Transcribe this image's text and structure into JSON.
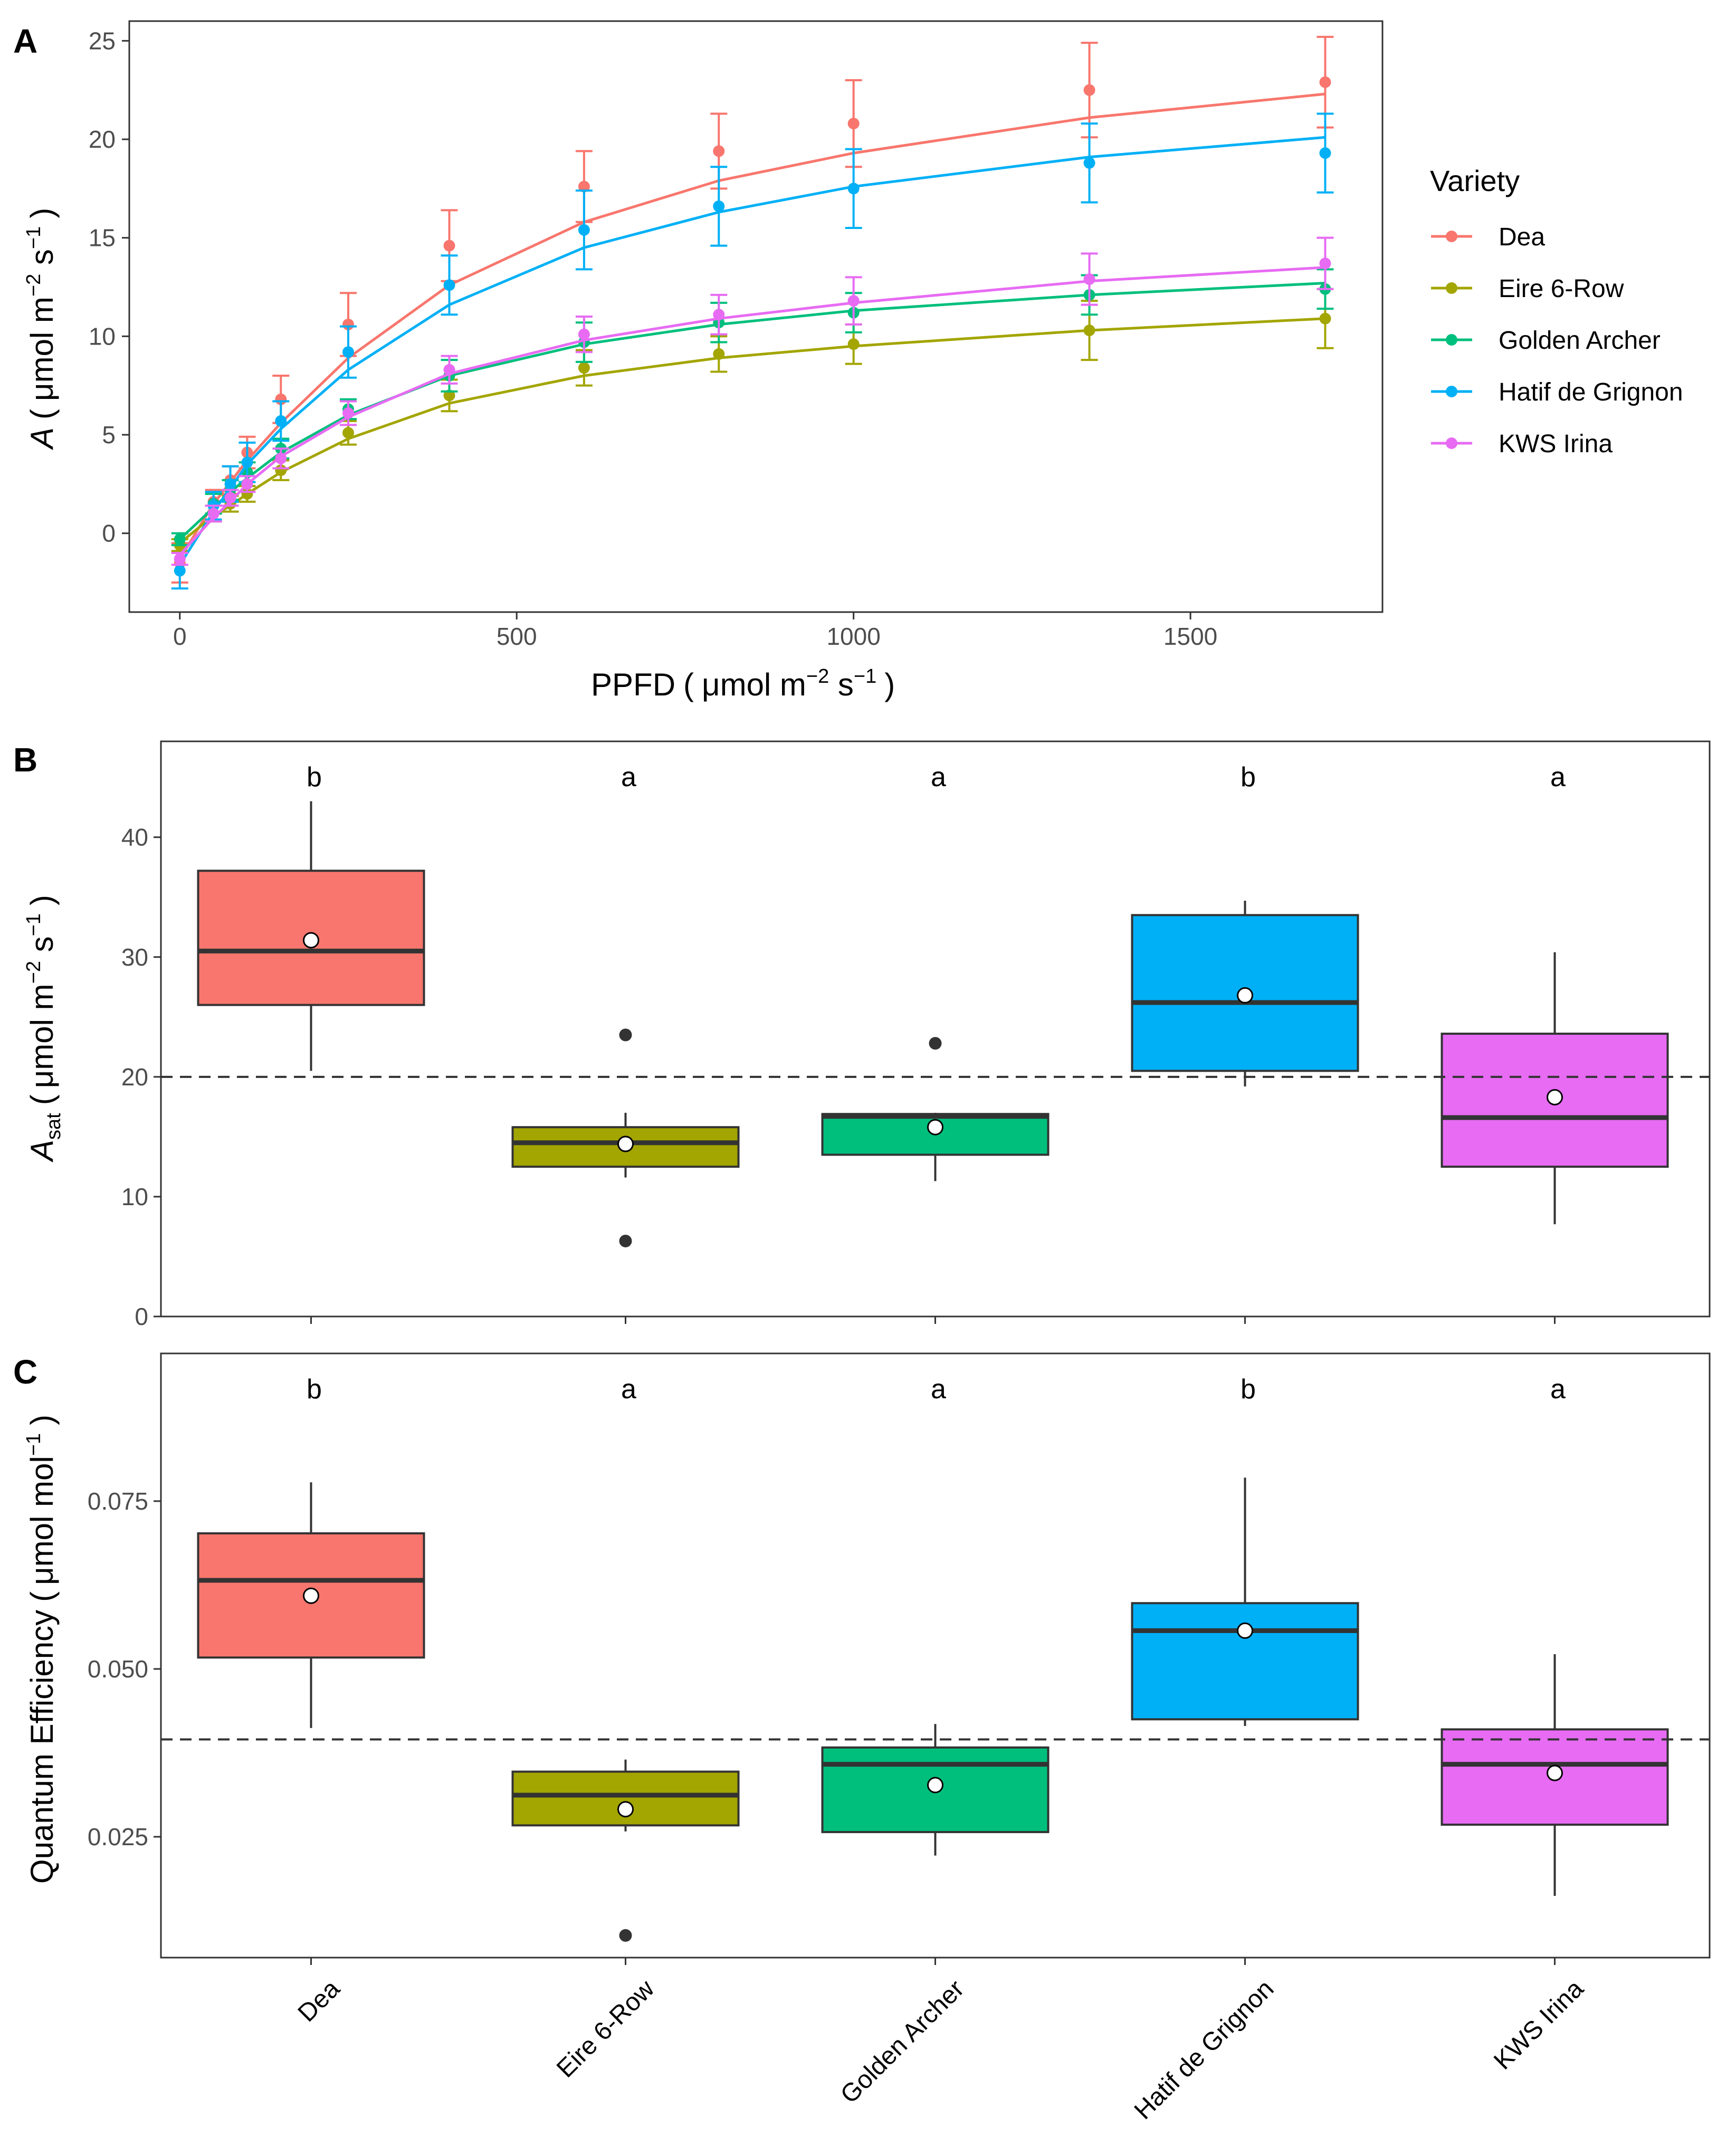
{
  "colors": {
    "Dea": "#F8766D",
    "Eire 6-Row": "#A3A500",
    "Golden Archer": "#00BF7D",
    "Hatif de Grignon": "#00B0F6",
    "KWS Irina": "#E76BF3"
  },
  "legend": {
    "title": "Variety",
    "items": [
      "Dea",
      "Eire 6-Row",
      "Golden Archer",
      "Hatif de Grignon",
      "KWS Irina"
    ]
  },
  "panelA": {
    "letter": "A",
    "ylabel_italic": "A",
    "ylabel_unit": "μmol m",
    "ylabel_exp1": "−2",
    "ylabel_s": " s",
    "ylabel_exp2": "−1",
    "xlabel_main": "PPFD",
    "xlabel_unit": "μmol m",
    "xlabel_exp1": "−2",
    "xlabel_s": " s",
    "xlabel_exp2": "−1",
    "xticks": [
      "0",
      "500",
      "1000",
      "1500"
    ],
    "yticks": [
      "0",
      "5",
      "10",
      "15",
      "20",
      "25"
    ]
  },
  "panelB": {
    "letter": "B",
    "ylabel_main": "A",
    "ylabel_sub": "sat",
    "ylabel_unit": "μmol m",
    "ylabel_exp1": "−2",
    "ylabel_s": " s",
    "ylabel_exp2": "−1",
    "yticks": [
      "0",
      "10",
      "20",
      "30",
      "40"
    ],
    "letters": [
      "b",
      "a",
      "a",
      "b",
      "a"
    ]
  },
  "panelC": {
    "letter": "C",
    "ylabel_main": "Quantum Efficiency",
    "ylabel_unit": "μmol mol",
    "ylabel_exp": "−1",
    "yticks": [
      "0.025",
      "0.050",
      "0.075"
    ],
    "letters": [
      "b",
      "a",
      "a",
      "b",
      "a"
    ]
  },
  "categories": [
    "Dea",
    "Eire 6-Row",
    "Golden Archer",
    "Hatif de Grignon",
    "KWS Irina"
  ],
  "chart_data": [
    {
      "type": "line",
      "title": "A",
      "xlabel": "PPFD (μmol m−2 s−1)",
      "ylabel": "A (μmol m−2 s−1)",
      "xlim": [
        -75,
        1785
      ],
      "ylim": [
        -4,
        26
      ],
      "x": [
        0,
        50,
        75,
        100,
        150,
        250,
        400,
        600,
        800,
        1000,
        1350,
        1700
      ],
      "series": [
        {
          "name": "Dea",
          "points": [
            -1.5,
            1.6,
            2.7,
            4.1,
            6.8,
            10.6,
            14.6,
            17.6,
            19.4,
            20.8,
            22.5,
            22.9
          ],
          "err": [
            1.0,
            0.6,
            0.7,
            0.8,
            1.2,
            1.6,
            1.8,
            1.8,
            1.9,
            2.2,
            2.4,
            2.3
          ],
          "fit": [
            -1.3,
            1.5,
            2.6,
            3.7,
            5.6,
            8.9,
            12.6,
            15.8,
            17.9,
            19.3,
            21.1,
            22.3
          ]
        },
        {
          "name": "Eire 6-Row",
          "points": [
            -0.6,
            1.0,
            1.5,
            2.0,
            3.2,
            5.1,
            7.0,
            8.4,
            9.1,
            9.6,
            10.3,
            10.9
          ],
          "err": [
            0.3,
            0.4,
            0.4,
            0.4,
            0.5,
            0.6,
            0.8,
            0.9,
            0.9,
            1.0,
            1.5,
            1.5
          ],
          "fit": [
            -0.5,
            0.9,
            1.4,
            2.0,
            3.1,
            4.8,
            6.6,
            8.0,
            8.9,
            9.5,
            10.3,
            10.9
          ]
        },
        {
          "name": "Golden Archer",
          "points": [
            -0.3,
            1.5,
            2.2,
            3.1,
            4.3,
            6.3,
            8.0,
            9.7,
            10.7,
            11.2,
            12.1,
            12.4
          ],
          "err": [
            0.3,
            0.5,
            0.5,
            0.5,
            0.5,
            0.5,
            0.8,
            1.0,
            1.0,
            1.0,
            1.0,
            1.0
          ],
          "fit": [
            -0.3,
            1.3,
            2.1,
            2.8,
            4.1,
            6.0,
            8.0,
            9.6,
            10.6,
            11.3,
            12.1,
            12.7
          ]
        },
        {
          "name": "Hatif de Grignon",
          "points": [
            -1.9,
            1.4,
            2.5,
            3.6,
            5.7,
            9.2,
            12.6,
            15.4,
            16.6,
            17.5,
            18.8,
            19.3
          ],
          "err": [
            0.9,
            0.7,
            0.9,
            1.0,
            1.0,
            1.3,
            1.5,
            2.0,
            2.0,
            2.0,
            2.0,
            2.0
          ],
          "fit": [
            -1.6,
            1.1,
            2.3,
            3.5,
            5.3,
            8.3,
            11.6,
            14.5,
            16.3,
            17.6,
            19.1,
            20.1
          ]
        },
        {
          "name": "KWS Irina",
          "points": [
            -1.3,
            1.0,
            1.8,
            2.5,
            3.8,
            6.1,
            8.3,
            10.1,
            11.1,
            11.8,
            12.9,
            13.7
          ],
          "err": [
            0.3,
            0.4,
            0.4,
            0.4,
            0.5,
            0.6,
            0.7,
            0.9,
            1.0,
            1.2,
            1.3,
            1.3
          ],
          "fit": [
            -1.1,
            0.8,
            1.6,
            2.5,
            3.9,
            5.9,
            8.1,
            9.8,
            10.9,
            11.7,
            12.8,
            13.5
          ]
        }
      ]
    },
    {
      "type": "box",
      "title": "B",
      "ylabel": "Asat (μmol m−2 s−1)",
      "ylim": [
        0,
        48
      ],
      "reference_line": 20,
      "categories": [
        "Dea",
        "Eire 6-Row",
        "Golden Archer",
        "Hatif de Grignon",
        "KWS Irina"
      ],
      "boxes": [
        {
          "min": 20.5,
          "q1": 26.0,
          "median": 30.5,
          "q3": 37.2,
          "max": 43.0,
          "mean": 31.4,
          "outliers": []
        },
        {
          "min": 11.6,
          "q1": 12.5,
          "median": 14.5,
          "q3": 15.8,
          "max": 17.0,
          "mean": 14.4,
          "outliers": [
            23.5,
            6.3
          ]
        },
        {
          "min": 11.3,
          "q1": 13.5,
          "median": 16.7,
          "q3": 16.9,
          "max": 17.0,
          "mean": 15.8,
          "outliers": [
            22.8
          ]
        },
        {
          "min": 19.2,
          "q1": 20.5,
          "median": 26.2,
          "q3": 33.5,
          "max": 34.7,
          "mean": 26.8,
          "outliers": []
        },
        {
          "min": 7.7,
          "q1": 12.5,
          "median": 16.6,
          "q3": 23.6,
          "max": 30.4,
          "mean": 18.3,
          "outliers": []
        }
      ],
      "annotations": [
        "b",
        "a",
        "a",
        "b",
        "a"
      ]
    },
    {
      "type": "box",
      "title": "C",
      "ylabel": "Quantum Efficiency (μmol mol−1)",
      "ylim": [
        0.007,
        0.097
      ],
      "reference_line": 0.0395,
      "categories": [
        "Dea",
        "Eire 6-Row",
        "Golden Archer",
        "Hatif de Grignon",
        "KWS Irina"
      ],
      "boxes": [
        {
          "min": 0.0412,
          "q1": 0.0517,
          "median": 0.0632,
          "q3": 0.0702,
          "max": 0.0778,
          "mean": 0.0609,
          "outliers": []
        },
        {
          "min": 0.0258,
          "q1": 0.0267,
          "median": 0.0312,
          "q3": 0.0347,
          "max": 0.0365,
          "mean": 0.0291,
          "outliers": [
            0.0103
          ]
        },
        {
          "min": 0.0222,
          "q1": 0.0257,
          "median": 0.0358,
          "q3": 0.0383,
          "max": 0.0418,
          "mean": 0.0327,
          "outliers": []
        },
        {
          "min": 0.0415,
          "q1": 0.0425,
          "median": 0.0557,
          "q3": 0.0598,
          "max": 0.0785,
          "mean": 0.0557,
          "outliers": []
        },
        {
          "min": 0.0162,
          "q1": 0.0268,
          "median": 0.0358,
          "q3": 0.041,
          "max": 0.0522,
          "mean": 0.0345,
          "outliers": []
        }
      ],
      "annotations": [
        "b",
        "a",
        "a",
        "b",
        "a"
      ]
    }
  ]
}
